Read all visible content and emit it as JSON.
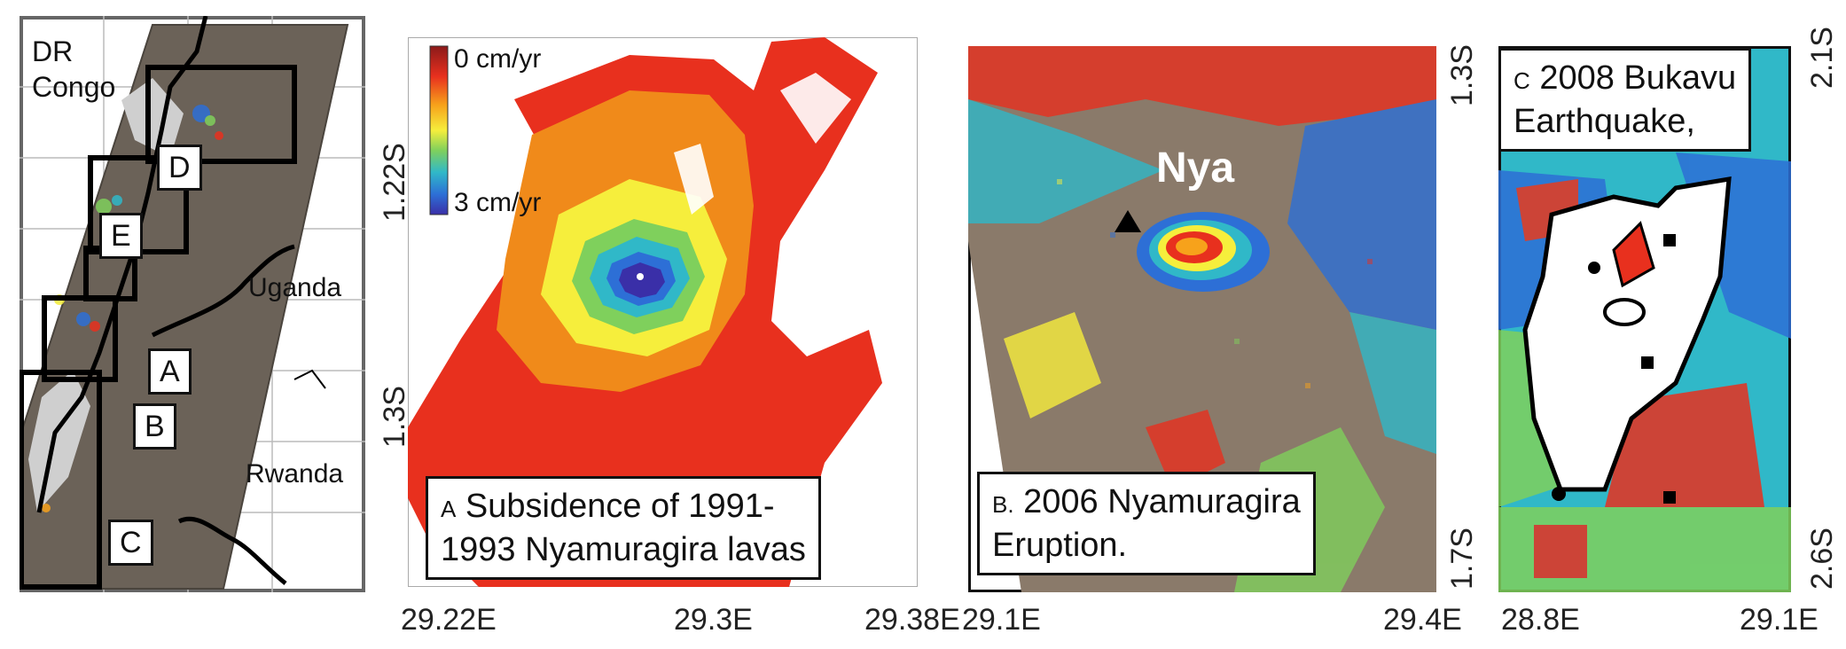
{
  "panel_overview": {
    "countries": [
      "DR Congo",
      "Uganda",
      "Rwanda"
    ],
    "boxes": [
      "D",
      "E",
      "A",
      "B",
      "C"
    ]
  },
  "panel_a": {
    "legend": {
      "max_label": "0 cm/yr",
      "min_label": "3 cm/yr",
      "colors": [
        "#8b1a1a",
        "#e8301e",
        "#f7a21b",
        "#f6ee3c",
        "#7fd05c",
        "#30b8c8",
        "#2d6fd6",
        "#3a2fa8"
      ]
    },
    "caption_prefix": "A",
    "caption_line1": "Subsidence of 1991-",
    "caption_line2": "1993 Nyamuragira lavas",
    "y_ticks": [
      "1.22S",
      "1.3S"
    ],
    "x_ticks": [
      "29.22E",
      "29.3E",
      "29.38E"
    ]
  },
  "panel_b": {
    "volcano_label": "Nya",
    "caption_prefix": "B.",
    "caption_line1": "2006 Nyamuragira",
    "caption_line2": "Eruption.",
    "y_ticks": [
      "1.3S",
      "1.7S"
    ],
    "x_ticks": [
      "29.1E",
      "29.4E"
    ]
  },
  "panel_c": {
    "caption_prefix": "C",
    "caption_line1": "2008 Bukavu",
    "caption_line2": "Earthquake,",
    "y_ticks": [
      "2.1S",
      "2.6S"
    ],
    "x_ticks": [
      "28.8E",
      "29.1E"
    ]
  }
}
